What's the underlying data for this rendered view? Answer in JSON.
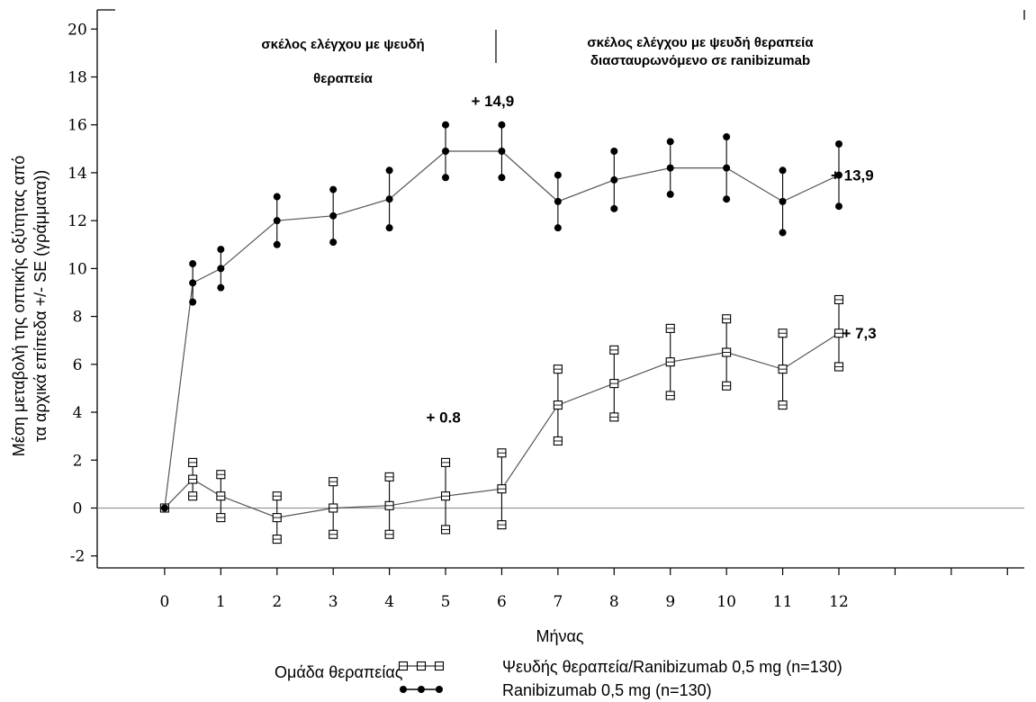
{
  "chart_data": {
    "type": "line",
    "title": "",
    "xlabel": "Μήνας",
    "ylabel_line1": "Μέση μεταβολή της οπτικής οξύτητας από",
    "ylabel_line2": "τα αρχικά επίπεδα +/- SE (γράμματα))",
    "xlim": [
      -1.2,
      15.3
    ],
    "ylim": [
      -2.5,
      20.8
    ],
    "xticks": [
      "0",
      "1",
      "2",
      "3",
      "4",
      "5",
      "6",
      "7",
      "8",
      "9",
      "10",
      "11",
      "12"
    ],
    "yticks": [
      "-2",
      "0",
      "2",
      "4",
      "6",
      "8",
      "10",
      "12",
      "14",
      "16",
      "18",
      "20"
    ],
    "grid": false,
    "reference_line_y": 0,
    "phase_labels": {
      "left_line1": "σκέλος ελέγχου με ψευδή",
      "left_line2": "θεραπεία",
      "right_line1": "σκέλος ελέγχου με ψευδή θεραπεία",
      "right_line2": "διασταυρωνόμενο σε ranibizumab"
    },
    "annotations": [
      {
        "text": "+ 14,9",
        "x": 6.0,
        "y": 17.0
      },
      {
        "text": "+ 13,9",
        "x": 12.4,
        "y": 13.9
      },
      {
        "text": "+ 7,3",
        "x": 12.6,
        "y": 7.3
      },
      {
        "text": "+ 0.8",
        "x": 5.2,
        "y": 3.8
      }
    ],
    "series": [
      {
        "name": "Ψευδής θεραπεία/Ranibizumab 0,5 mg (n=130)",
        "marker": "square",
        "color": "#000000",
        "x": [
          0,
          0.5,
          1,
          2,
          3,
          4,
          5,
          6,
          7,
          8,
          9,
          10,
          11,
          12
        ],
        "y": [
          0,
          1.2,
          0.5,
          -0.4,
          0.0,
          0.1,
          0.5,
          0.8,
          4.3,
          5.2,
          6.1,
          6.5,
          5.8,
          7.3
        ],
        "err": [
          0,
          0.7,
          0.9,
          0.9,
          1.1,
          1.2,
          1.4,
          1.5,
          1.5,
          1.4,
          1.4,
          1.4,
          1.5,
          1.4
        ]
      },
      {
        "name": "Ranibizumab 0,5 mg (n=130)",
        "marker": "circle",
        "color": "#000000",
        "x": [
          0,
          0.5,
          1,
          2,
          3,
          4,
          5,
          6,
          7,
          8,
          9,
          10,
          11,
          12
        ],
        "y": [
          0,
          9.4,
          10.0,
          12.0,
          12.2,
          12.9,
          14.9,
          14.9,
          12.8,
          13.7,
          14.2,
          14.2,
          12.8,
          13.9
        ],
        "err": [
          0,
          0.8,
          0.8,
          1.0,
          1.1,
          1.2,
          1.1,
          1.1,
          1.1,
          1.2,
          1.1,
          1.3,
          1.3,
          1.3
        ]
      }
    ],
    "legend": {
      "title": "Ομάδα θεραπείας",
      "placement": "bottom"
    }
  }
}
